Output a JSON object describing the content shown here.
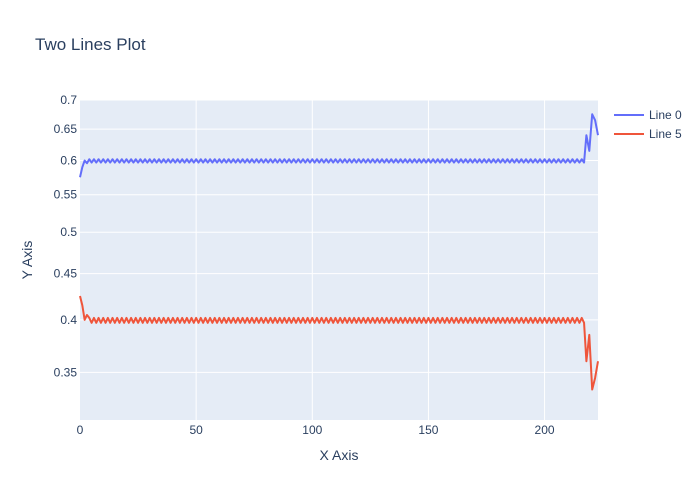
{
  "chart_data": {
    "type": "line",
    "title": "Two Lines Plot",
    "xlabel": "X Axis",
    "ylabel": "Y Axis",
    "y_scale": "log",
    "xlim": [
      0,
      223
    ],
    "ylim": [
      0.31,
      0.7
    ],
    "x_ticks": [
      0,
      50,
      100,
      150,
      200
    ],
    "x_tick_labels": [
      "0",
      "50",
      "100",
      "150",
      "200"
    ],
    "y_ticks": [
      0.35,
      0.4,
      0.45,
      0.5,
      0.55,
      0.6,
      0.65,
      0.7
    ],
    "y_tick_labels": [
      "0.35",
      "0.4",
      "0.45",
      "0.5",
      "0.55",
      "0.6",
      "0.65",
      "0.7"
    ],
    "grid": true,
    "legend_position": "top-right",
    "colors": {
      "plot_bg": "#e5ecf6",
      "grid": "#ffffff",
      "line0": "#636efa",
      "line5": "#ef553b"
    },
    "series": [
      {
        "name": "Line 0",
        "color": "#636efa",
        "pattern": "alternating",
        "start": [
          0.575,
          0.59,
          0.6,
          0.596
        ],
        "high": 0.602,
        "low": 0.597,
        "tail_start_x": 218,
        "tail": [
          0.64,
          0.615,
          0.675,
          0.665,
          0.64
        ]
      },
      {
        "name": "Line 5",
        "color": "#ef553b",
        "pattern": "alternating",
        "start": [
          0.425,
          0.415,
          0.4,
          0.405
        ],
        "high": 0.402,
        "low": 0.397,
        "tail_start_x": 218,
        "tail": [
          0.36,
          0.385,
          0.335,
          0.345,
          0.36
        ]
      }
    ],
    "x_end": 223
  }
}
